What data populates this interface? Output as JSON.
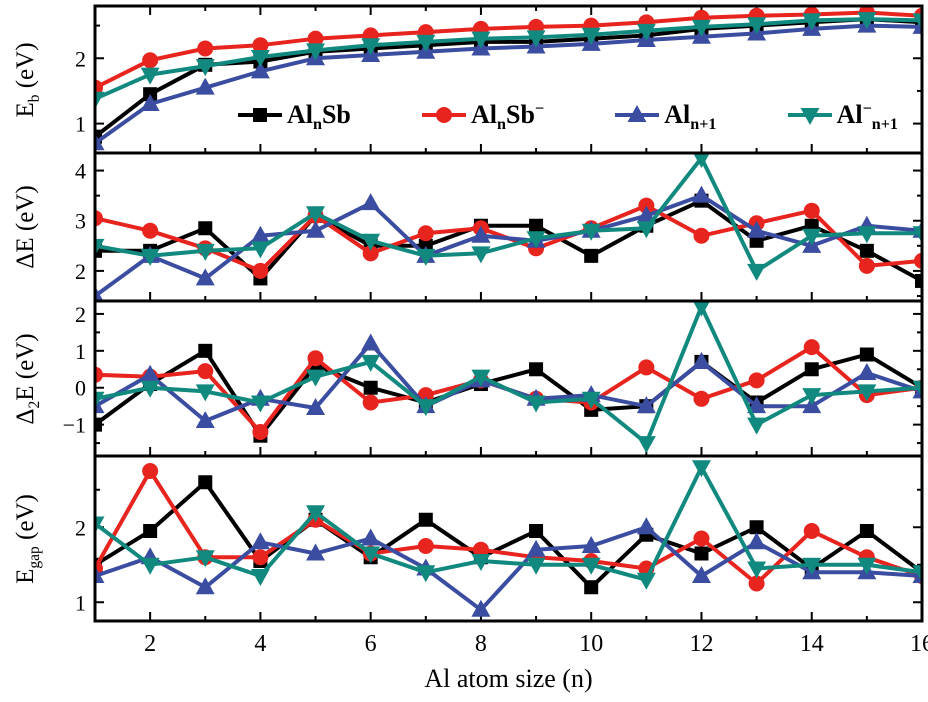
{
  "figure": {
    "background": "#ffffff",
    "xlabel": "Al atom size (n)"
  },
  "colors": {
    "black": "#000000",
    "red": "#e8241f",
    "blue": "#3b4da0",
    "teal": "#12897f"
  },
  "x": [
    1,
    2,
    3,
    4,
    5,
    6,
    7,
    8,
    9,
    10,
    11,
    12,
    13,
    14,
    15,
    16
  ],
  "axes": {
    "x": {
      "range": [
        1,
        16
      ],
      "major_ticks": [
        2,
        4,
        6,
        8,
        10,
        12,
        14,
        16
      ],
      "minor_ticks": [
        1,
        3,
        5,
        7,
        9,
        11,
        13,
        15
      ],
      "tick_labels": [
        "2",
        "4",
        "6",
        "8",
        "10",
        "12",
        "14",
        "16"
      ]
    }
  },
  "legend": {
    "items": [
      {
        "series": "AlnSb",
        "marker": "square",
        "color_key": "black",
        "segments": [
          {
            "type": "t",
            "text": "Al"
          },
          {
            "type": "sub",
            "text": "n"
          },
          {
            "type": "t",
            "text": "Sb"
          }
        ]
      },
      {
        "series": "AlnSb-anion",
        "marker": "circle",
        "color_key": "red",
        "segments": [
          {
            "type": "t",
            "text": "Al"
          },
          {
            "type": "sub",
            "text": "n"
          },
          {
            "type": "t",
            "text": "Sb"
          },
          {
            "type": "sup",
            "text": "−"
          }
        ]
      },
      {
        "series": "Aln+1",
        "marker": "triangle-up",
        "color_key": "blue",
        "segments": [
          {
            "type": "t",
            "text": "Al"
          },
          {
            "type": "sub",
            "text": "n+1"
          }
        ]
      },
      {
        "series": "Aln+1-anion",
        "marker": "triangle-down",
        "color_key": "teal",
        "segments": [
          {
            "type": "t",
            "text": "Al"
          },
          {
            "type": "sup",
            "text": "−"
          },
          {
            "type": "sub",
            "text": "n+1"
          }
        ]
      }
    ]
  },
  "chart_data": [
    {
      "type": "line",
      "name": "binding-energy",
      "ylabel": [
        {
          "type": "t",
          "text": "E"
        },
        {
          "type": "sub",
          "text": "b"
        },
        {
          "type": "t",
          "text": " (eV)"
        }
      ],
      "ylim": [
        0.55,
        2.8
      ],
      "yticks": [
        1,
        2
      ],
      "series": [
        {
          "key": "AlnSb",
          "color": "black",
          "marker": "square",
          "values": [
            0.8,
            1.45,
            1.9,
            1.95,
            2.1,
            2.15,
            2.2,
            2.25,
            2.25,
            2.3,
            2.35,
            2.45,
            2.5,
            2.55,
            2.6,
            2.55
          ]
        },
        {
          "key": "AlnSb-anion",
          "color": "red",
          "marker": "circle",
          "values": [
            1.55,
            1.97,
            2.15,
            2.2,
            2.3,
            2.35,
            2.4,
            2.45,
            2.48,
            2.5,
            2.55,
            2.62,
            2.65,
            2.67,
            2.7,
            2.65
          ]
        },
        {
          "key": "Aln+1",
          "color": "blue",
          "marker": "triangle-up",
          "values": [
            0.7,
            1.3,
            1.55,
            1.8,
            2.0,
            2.05,
            2.1,
            2.15,
            2.18,
            2.22,
            2.28,
            2.33,
            2.38,
            2.45,
            2.5,
            2.48
          ]
        },
        {
          "key": "Aln+1-anion",
          "color": "teal",
          "marker": "triangle-down",
          "values": [
            1.38,
            1.75,
            1.88,
            2.02,
            2.12,
            2.2,
            2.25,
            2.3,
            2.32,
            2.36,
            2.42,
            2.48,
            2.52,
            2.58,
            2.6,
            2.58
          ]
        }
      ]
    },
    {
      "type": "line",
      "name": "fragmentation-energy",
      "ylabel": [
        {
          "type": "t",
          "text": "ΔE (eV)"
        }
      ],
      "ylim": [
        1.4,
        4.35
      ],
      "yticks": [
        2,
        3,
        4
      ],
      "series": [
        {
          "key": "AlnSb",
          "color": "black",
          "marker": "square",
          "values": [
            2.4,
            2.4,
            2.85,
            1.85,
            3.1,
            2.5,
            2.5,
            2.9,
            2.9,
            2.3,
            2.9,
            3.4,
            2.6,
            2.9,
            2.4,
            1.8
          ]
        },
        {
          "key": "AlnSb-anion",
          "color": "red",
          "marker": "circle",
          "values": [
            3.05,
            2.8,
            2.45,
            2.0,
            3.1,
            2.35,
            2.75,
            2.85,
            2.45,
            2.85,
            3.3,
            2.7,
            2.95,
            3.2,
            2.1,
            2.2
          ]
        },
        {
          "key": "Aln+1",
          "color": "blue",
          "marker": "triangle-up",
          "values": [
            1.5,
            2.3,
            1.85,
            2.7,
            2.8,
            3.35,
            2.3,
            2.7,
            2.6,
            2.8,
            3.1,
            3.5,
            2.8,
            2.5,
            2.9,
            2.8
          ]
        },
        {
          "key": "Aln+1-anion",
          "color": "teal",
          "marker": "triangle-down",
          "values": [
            2.5,
            2.3,
            2.4,
            2.45,
            3.15,
            2.6,
            2.3,
            2.35,
            2.65,
            2.8,
            2.85,
            4.25,
            2.0,
            2.7,
            2.75,
            2.75
          ]
        }
      ]
    },
    {
      "type": "line",
      "name": "second-difference-energy",
      "ylabel": [
        {
          "type": "t",
          "text": "Δ"
        },
        {
          "type": "sub",
          "text": "2"
        },
        {
          "type": "t",
          "text": "E (eV)"
        }
      ],
      "ylim": [
        -1.85,
        2.35
      ],
      "yticks": [
        -1,
        0,
        1,
        2
      ],
      "series": [
        {
          "key": "AlnSb",
          "color": "black",
          "marker": "square",
          "values": [
            -1.0,
            0.1,
            1.0,
            -1.3,
            0.6,
            0.0,
            -0.4,
            0.1,
            0.5,
            -0.6,
            -0.5,
            0.7,
            -0.4,
            0.5,
            0.9,
            0.0
          ]
        },
        {
          "key": "AlnSb-anion",
          "color": "red",
          "marker": "circle",
          "values": [
            0.35,
            0.3,
            0.45,
            -1.2,
            0.8,
            -0.4,
            -0.2,
            0.2,
            -0.3,
            -0.4,
            0.55,
            -0.3,
            0.2,
            1.1,
            -0.2,
            0.0
          ]
        },
        {
          "key": "Aln+1",
          "color": "blue",
          "marker": "triangle-up",
          "values": [
            -0.5,
            0.35,
            -0.9,
            -0.3,
            -0.55,
            1.2,
            -0.5,
            0.2,
            -0.3,
            -0.2,
            -0.5,
            0.7,
            -0.5,
            -0.5,
            0.4,
            -0.1
          ]
        },
        {
          "key": "Aln+1-anion",
          "color": "teal",
          "marker": "triangle-down",
          "values": [
            -0.3,
            0.0,
            -0.1,
            -0.4,
            0.3,
            0.7,
            -0.5,
            0.3,
            -0.4,
            -0.3,
            -1.5,
            2.2,
            -1.0,
            -0.2,
            -0.1,
            0.0
          ]
        }
      ]
    },
    {
      "type": "line",
      "name": "homo-lumo-gap",
      "ylabel": [
        {
          "type": "t",
          "text": "E"
        },
        {
          "type": "sub",
          "text": "gap"
        },
        {
          "type": "t",
          "text": " (eV)"
        }
      ],
      "ylim": [
        0.75,
        2.95
      ],
      "yticks": [
        1,
        2
      ],
      "series": [
        {
          "key": "AlnSb",
          "color": "black",
          "marker": "square",
          "values": [
            1.5,
            1.95,
            2.6,
            1.55,
            2.1,
            1.6,
            2.1,
            1.6,
            1.95,
            1.2,
            1.9,
            1.65,
            2.0,
            1.45,
            1.95,
            1.4
          ]
        },
        {
          "key": "AlnSb-anion",
          "color": "red",
          "marker": "circle",
          "values": [
            1.45,
            2.75,
            1.6,
            1.6,
            2.1,
            1.65,
            1.75,
            1.7,
            1.6,
            1.55,
            1.45,
            1.85,
            1.25,
            1.95,
            1.6,
            1.35
          ]
        },
        {
          "key": "Aln+1",
          "color": "blue",
          "marker": "triangle-up",
          "values": [
            1.35,
            1.6,
            1.2,
            1.8,
            1.65,
            1.85,
            1.45,
            0.9,
            1.7,
            1.75,
            2.0,
            1.35,
            1.8,
            1.4,
            1.4,
            1.35
          ]
        },
        {
          "key": "Aln+1-anion",
          "color": "teal",
          "marker": "triangle-down",
          "values": [
            2.05,
            1.5,
            1.6,
            1.35,
            2.2,
            1.65,
            1.4,
            1.55,
            1.5,
            1.5,
            1.3,
            2.8,
            1.45,
            1.5,
            1.5,
            1.4
          ]
        }
      ]
    }
  ]
}
